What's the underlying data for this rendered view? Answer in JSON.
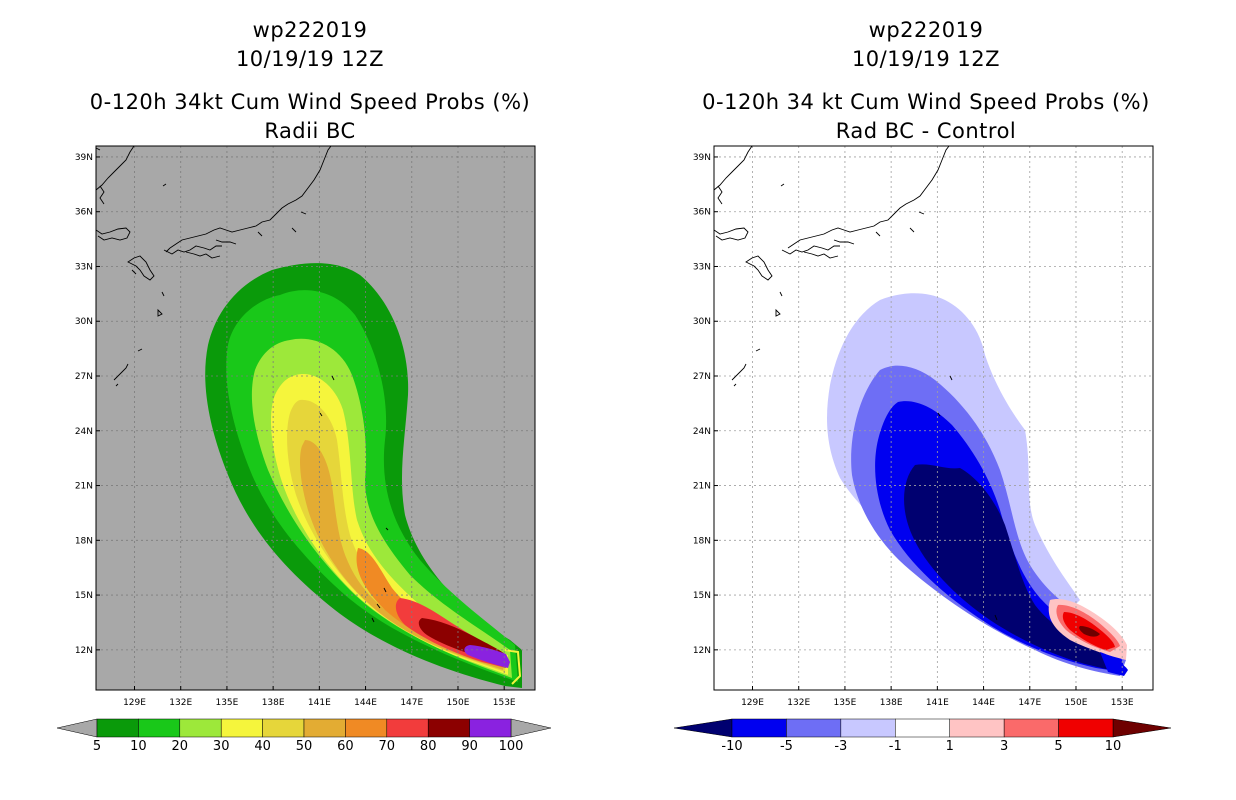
{
  "chart_data": [
    {
      "type": "heatmap",
      "panel": "left",
      "title_lines": [
        "wp222019",
        "10/19/19 12Z",
        "0-120h 34kt Cum Wind Speed Probs (%)",
        "Radii BC"
      ],
      "xlabel": "",
      "ylabel": "",
      "x_ticks": [
        "129E",
        "132E",
        "135E",
        "138E",
        "141E",
        "144E",
        "147E",
        "150E",
        "153E"
      ],
      "y_ticks": [
        "12N",
        "15N",
        "18N",
        "21N",
        "24N",
        "27N",
        "30N",
        "33N",
        "36N",
        "39N"
      ],
      "xlim": [
        126.5,
        155.0
      ],
      "ylim": [
        9.8,
        39.6
      ],
      "grid": true,
      "background": "#a8a8a8",
      "colorbar_levels": [
        "5",
        "10",
        "20",
        "30",
        "40",
        "50",
        "60",
        "70",
        "80",
        "90",
        "100"
      ],
      "colorbar_colors": [
        "#0a9a0a",
        "#19c819",
        "#9de83a",
        "#f5f53c",
        "#e6d63a",
        "#e3ac33",
        "#f08a24",
        "#f23c3c",
        "#8c0000",
        "#8a22e0"
      ],
      "colorbar_end_color": "#a8a8a8"
    },
    {
      "type": "heatmap",
      "panel": "right",
      "title_lines": [
        "wp222019",
        "10/19/19 12Z",
        "0-120h 34 kt Cum Wind Speed Probs (%)",
        "Rad BC - Control"
      ],
      "xlabel": "",
      "ylabel": "",
      "x_ticks": [
        "129E",
        "132E",
        "135E",
        "138E",
        "141E",
        "144E",
        "147E",
        "150E",
        "153E"
      ],
      "y_ticks": [
        "12N",
        "15N",
        "18N",
        "21N",
        "24N",
        "27N",
        "30N",
        "33N",
        "36N",
        "39N"
      ],
      "xlim": [
        126.5,
        155.0
      ],
      "ylim": [
        9.8,
        39.6
      ],
      "grid": true,
      "background": "#ffffff",
      "colorbar_levels": [
        "-10",
        "-5",
        "-3",
        "-1",
        "1",
        "3",
        "5",
        "10"
      ],
      "colorbar_colors": [
        "#0000f0",
        "#6e6ef5",
        "#c8c8ff",
        "#ffffff",
        "#ffc4c4",
        "#fa6a6a",
        "#f00000"
      ],
      "colorbar_start_color": "#000070",
      "colorbar_end_color": "#6e0000"
    }
  ]
}
